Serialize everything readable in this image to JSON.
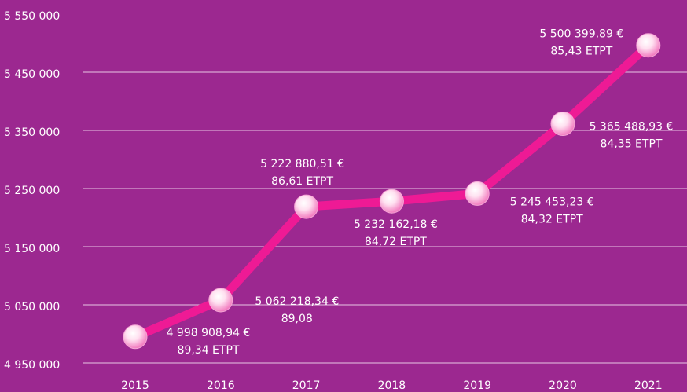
{
  "chart_data": {
    "type": "line",
    "categories": [
      "2015",
      "2016",
      "2017",
      "2018",
      "2019",
      "2020",
      "2021"
    ],
    "series": [
      {
        "color": "#ee1a95",
        "values": [
          4998908.94,
          5062218.34,
          5222880.51,
          5232162.18,
          5245453.23,
          5365488.93,
          5500399.89
        ],
        "value_labels": [
          "4 998 908,94 €",
          "5 062 218,34 €",
          "5 222 880,51 €",
          "5 232 162,18 €",
          "5 245 453,23 €",
          "5 365 488,93 €",
          "5 500 399,89 €"
        ],
        "sub_labels": [
          "89,34 ETPT",
          "89,08",
          "86,61 ETPT",
          "84,72 ETPT",
          "84,32 ETPT",
          "84,35 ETPT",
          "85,43 ETPT"
        ]
      }
    ],
    "ylim": [
      4950000,
      5550000
    ],
    "yticks": [
      {
        "value": 4950000,
        "label": "4 950 000"
      },
      {
        "value": 5050000,
        "label": "5 050 000"
      },
      {
        "value": 5150000,
        "label": "5 150 000"
      },
      {
        "value": 5250000,
        "label": "5 250 000"
      },
      {
        "value": 5350000,
        "label": "5 350 000"
      },
      {
        "value": 5450000,
        "label": "5 450 000"
      },
      {
        "value": 5550000,
        "label": "5 550 000"
      }
    ],
    "grid": true
  }
}
